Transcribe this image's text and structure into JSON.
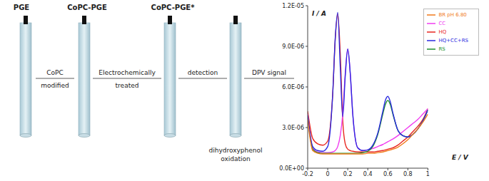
{
  "diagram": {
    "electrodes": [
      "PGE",
      "CoPC-PGE",
      "CoPC-PGE*"
    ],
    "steps": [
      {
        "above": "CoPC",
        "below": "modified"
      },
      {
        "above": "Electrochemically",
        "below": "treated"
      },
      {
        "above": "detection"
      },
      {
        "above": "DPV signal"
      }
    ],
    "caption": [
      "dihydroxyphenol",
      "oxidation"
    ]
  },
  "chart_data": {
    "type": "line",
    "x_label": "E / V",
    "y_label": "I / A",
    "x": [
      -0.2,
      -0.15,
      -0.1,
      -0.05,
      0,
      0.05,
      0.075,
      0.1,
      0.125,
      0.15,
      0.175,
      0.2,
      0.225,
      0.25,
      0.3,
      0.35,
      0.4,
      0.45,
      0.5,
      0.55,
      0.575,
      0.6,
      0.625,
      0.65,
      0.7,
      0.75,
      0.8,
      0.85,
      0.9,
      0.95,
      1.0
    ],
    "series": [
      {
        "name": "HQ",
        "color": "#e8261f",
        "values": [
          4.2e-06,
          2.2e-06,
          1.8e-06,
          1.7e-06,
          2e-06,
          5.5e-06,
          9.5e-06,
          1.14e-05,
          8.5e-06,
          3.5e-06,
          1.8e-06,
          1.4e-06,
          1.3e-06,
          1.25e-06,
          1.2e-06,
          1.2e-06,
          1.2e-06,
          1.2e-06,
          1.25e-06,
          1.3e-06,
          1.35e-06,
          1.4e-06,
          1.45e-06,
          1.5e-06,
          1.7e-06,
          2e-06,
          2.3e-06,
          2.7e-06,
          3.1e-06,
          3.6e-06,
          4.4e-06
        ]
      },
      {
        "name": "CC",
        "color": "#f03cf0",
        "values": [
          4e-06,
          1.5e-06,
          1.2e-06,
          1.15e-06,
          1.15e-06,
          1.2e-06,
          1.3e-06,
          1.6e-06,
          2.4e-06,
          4e-06,
          7e-06,
          8.8e-06,
          7e-06,
          4e-06,
          1.5e-06,
          1.3e-06,
          1.35e-06,
          1.45e-06,
          1.6e-06,
          1.75e-06,
          1.85e-06,
          1.95e-06,
          2.05e-06,
          2.15e-06,
          2.4e-06,
          2.7e-06,
          3e-06,
          3.3e-06,
          3.6e-06,
          4e-06,
          4.4e-06
        ]
      },
      {
        "name": "RS",
        "color": "#1f8f2f",
        "values": [
          3.8e-06,
          1.4e-06,
          1.15e-06,
          1.1e-06,
          1.1e-06,
          1.1e-06,
          1.1e-06,
          1.1e-06,
          1.1e-06,
          1.1e-06,
          1.1e-06,
          1.1e-06,
          1.1e-06,
          1.1e-06,
          1.1e-06,
          1.15e-06,
          1.25e-06,
          1.6e-06,
          2.5e-06,
          4e-06,
          4.7e-06,
          5e-06,
          4.7e-06,
          4e-06,
          2.8e-06,
          2.4e-06,
          2.3e-06,
          2.5e-06,
          2.9e-06,
          3.5e-06,
          4.3e-06
        ]
      },
      {
        "name": "HQ+CC+RS",
        "color": "#2a2ae0",
        "values": [
          3.9e-06,
          1.6e-06,
          1.3e-06,
          1.25e-06,
          1.6e-06,
          5.5e-06,
          9.6e-06,
          1.15e-05,
          7.5e-06,
          3.8e-06,
          6.8e-06,
          8.8e-06,
          7e-06,
          4e-06,
          1.5e-06,
          1.3e-06,
          1.35e-06,
          1.7e-06,
          2.6e-06,
          4.2e-06,
          5e-06,
          5.3e-06,
          4.9e-06,
          4.1e-06,
          2.8e-06,
          2.4e-06,
          2.3e-06,
          2.5e-06,
          2.9e-06,
          3.5e-06,
          4.3e-06
        ]
      },
      {
        "name": "BR pH 6.80",
        "color": "#f07a1a",
        "values": [
          3.6e-06,
          1.3e-06,
          1.1e-06,
          1.05e-06,
          1.05e-06,
          1.05e-06,
          1.05e-06,
          1.05e-06,
          1.05e-06,
          1.05e-06,
          1.05e-06,
          1.05e-06,
          1.05e-06,
          1.05e-06,
          1.05e-06,
          1.05e-06,
          1.1e-06,
          1.1e-06,
          1.15e-06,
          1.2e-06,
          1.25e-06,
          1.3e-06,
          1.35e-06,
          1.4e-06,
          1.55e-06,
          1.8e-06,
          2.1e-06,
          2.5e-06,
          2.9e-06,
          3.4e-06,
          4e-06
        ]
      }
    ],
    "xlim": [
      -0.2,
      1
    ],
    "xticks": [
      -0.2,
      0,
      0.2,
      0.4,
      0.6,
      0.8,
      1
    ],
    "ylim": [
      0,
      1.2e-05
    ],
    "yticks": [
      {
        "value": 0,
        "label": "0.0E+00"
      },
      {
        "value": 3e-06,
        "label": "3.0E-06"
      },
      {
        "value": 6e-06,
        "label": "6.0E-06"
      },
      {
        "value": 9e-06,
        "label": "9.0E-06"
      },
      {
        "value": 1.2e-05,
        "label": "1.2E-05"
      }
    ],
    "legend": "top-right",
    "grid": false
  }
}
